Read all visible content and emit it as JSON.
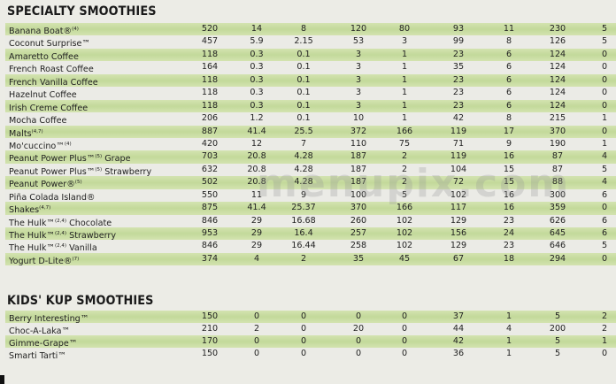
{
  "watermark": "menupix.com",
  "sections": [
    {
      "title": "SPECIALTY SMOOTHIES",
      "rows": [
        {
          "name": "Banana Boat®",
          "sup": "(4)",
          "suffix": "",
          "values": [
            "520",
            "14",
            "8",
            "120",
            "80",
            "93",
            "11",
            "230",
            "5"
          ]
        },
        {
          "name": "Coconut Surprise™",
          "sup": "",
          "suffix": "",
          "values": [
            "457",
            "5.9",
            "2.15",
            "53",
            "3",
            "99",
            "8",
            "126",
            "5"
          ]
        },
        {
          "name": "Amaretto Coffee",
          "sup": "",
          "suffix": "",
          "values": [
            "118",
            "0.3",
            "0.1",
            "3",
            "1",
            "23",
            "6",
            "124",
            "0"
          ]
        },
        {
          "name": "French Roast Coffee",
          "sup": "",
          "suffix": "",
          "values": [
            "164",
            "0.3",
            "0.1",
            "3",
            "1",
            "35",
            "6",
            "124",
            "0"
          ]
        },
        {
          "name": "French Vanilla Coffee",
          "sup": "",
          "suffix": "",
          "values": [
            "118",
            "0.3",
            "0.1",
            "3",
            "1",
            "23",
            "6",
            "124",
            "0"
          ]
        },
        {
          "name": "Hazelnut Coffee",
          "sup": "",
          "suffix": "",
          "values": [
            "118",
            "0.3",
            "0.1",
            "3",
            "1",
            "23",
            "6",
            "124",
            "0"
          ]
        },
        {
          "name": "Irish Creme Coffee",
          "sup": "",
          "suffix": "",
          "values": [
            "118",
            "0.3",
            "0.1",
            "3",
            "1",
            "23",
            "6",
            "124",
            "0"
          ]
        },
        {
          "name": "Mocha Coffee",
          "sup": "",
          "suffix": "",
          "values": [
            "206",
            "1.2",
            "0.1",
            "10",
            "1",
            "42",
            "8",
            "215",
            "1"
          ]
        },
        {
          "name": "Malts",
          "sup": "(4,7)",
          "suffix": "",
          "values": [
            "887",
            "41.4",
            "25.5",
            "372",
            "166",
            "119",
            "17",
            "370",
            "0"
          ]
        },
        {
          "name": "Mo'cuccino™",
          "sup": "(4)",
          "suffix": "",
          "values": [
            "420",
            "12",
            "7",
            "110",
            "75",
            "71",
            "9",
            "190",
            "1"
          ]
        },
        {
          "name": "Peanut Power Plus™",
          "sup": "(5)",
          "suffix": " Grape",
          "values": [
            "703",
            "20.8",
            "4.28",
            "187",
            "2",
            "119",
            "16",
            "87",
            "4"
          ]
        },
        {
          "name": "Peanut Power Plus™",
          "sup": "(5)",
          "suffix": " Strawberry",
          "values": [
            "632",
            "20.8",
            "4.28",
            "187",
            "2",
            "104",
            "15",
            "87",
            "5"
          ]
        },
        {
          "name": "Peanut Power®",
          "sup": "(5)",
          "suffix": "",
          "values": [
            "502",
            "20.8",
            "4.28",
            "187",
            "2",
            "72",
            "15",
            "88",
            "4"
          ]
        },
        {
          "name": "Piña Colada Island®",
          "sup": "",
          "suffix": "",
          "values": [
            "550",
            "11",
            "9",
            "100",
            "5",
            "102",
            "16",
            "300",
            "6"
          ]
        },
        {
          "name": "Shakes",
          "sup": "(4,7)",
          "suffix": "",
          "values": [
            "875",
            "41.4",
            "25.37",
            "370",
            "166",
            "117",
            "16",
            "359",
            "0"
          ]
        },
        {
          "name": "The Hulk™",
          "sup": "(2,4)",
          "suffix": " Chocolate",
          "values": [
            "846",
            "29",
            "16.68",
            "260",
            "102",
            "129",
            "23",
            "626",
            "6"
          ]
        },
        {
          "name": "The Hulk™",
          "sup": "(2,4)",
          "suffix": " Strawberry",
          "values": [
            "953",
            "29",
            "16.4",
            "257",
            "102",
            "156",
            "24",
            "645",
            "6"
          ]
        },
        {
          "name": "The Hulk™",
          "sup": "(2,4)",
          "suffix": " Vanilla",
          "values": [
            "846",
            "29",
            "16.44",
            "258",
            "102",
            "129",
            "23",
            "646",
            "5"
          ]
        },
        {
          "name": "Yogurt D-Lite®",
          "sup": "(7)",
          "suffix": "",
          "values": [
            "374",
            "4",
            "2",
            "35",
            "45",
            "67",
            "18",
            "294",
            "0"
          ]
        }
      ]
    },
    {
      "title": "KIDS' KUP SMOOTHIES",
      "rows": [
        {
          "name": "Berry Interesting™",
          "sup": "",
          "suffix": "",
          "values": [
            "150",
            "0",
            "0",
            "0",
            "0",
            "37",
            "1",
            "5",
            "2"
          ]
        },
        {
          "name": "Choc-A-Laka™",
          "sup": "",
          "suffix": "",
          "values": [
            "210",
            "2",
            "0",
            "20",
            "0",
            "44",
            "4",
            "200",
            "2"
          ]
        },
        {
          "name": "Gimme-Grape™",
          "sup": "",
          "suffix": "",
          "values": [
            "170",
            "0",
            "0",
            "0",
            "0",
            "42",
            "1",
            "5",
            "1"
          ]
        },
        {
          "name": "Smarti Tarti™",
          "sup": "",
          "suffix": "",
          "values": [
            "150",
            "0",
            "0",
            "0",
            "0",
            "36",
            "1",
            "5",
            "0"
          ]
        }
      ]
    }
  ]
}
